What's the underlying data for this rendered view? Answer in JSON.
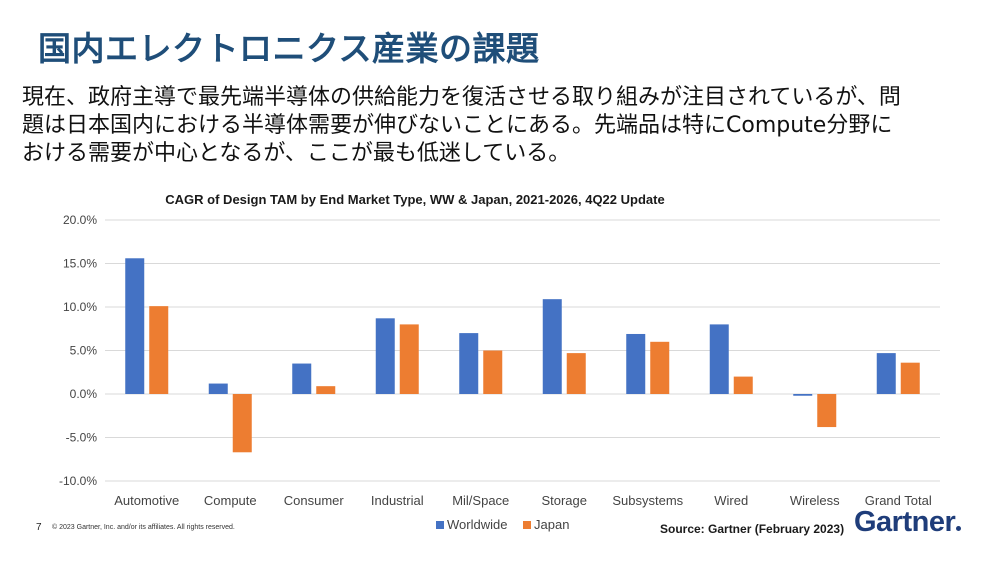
{
  "slide": {
    "title": "国内エレクトロニクス産業の課題",
    "body_lines": [
      "現在、政府主導で最先端半導体の供給能力を復活させる取り組みが注目されているが、問",
      "題は日本国内における半導体需要が伸びないことにある。先端品は特にCompute分野に",
      "おける需要が中心となるが、ここが最も低迷している。"
    ],
    "page_number": "7",
    "copyright": "© 2023 Gartner, Inc. and/or its affiliates. All rights reserved.",
    "source": "Source: Gartner (February 2023)",
    "logo": "Gartner"
  },
  "colors": {
    "title": "#1f4e79",
    "worldwide": "#4472c4",
    "japan": "#ed7d31",
    "gridline": "#d9d9d9",
    "logo": "#1f3d7a"
  },
  "chart_data": {
    "type": "bar",
    "title": "CAGR of Design TAM by End Market Type, WW & Japan, 2021-2026, 4Q22 Update",
    "xlabel": "",
    "ylabel": "",
    "categories": [
      "Automotive",
      "Compute",
      "Consumer",
      "Industrial",
      "Mil/Space",
      "Storage",
      "Subsystems",
      "Wired",
      "Wireless",
      "Grand Total"
    ],
    "series": [
      {
        "name": "Worldwide",
        "values": [
          15.6,
          1.2,
          3.5,
          8.7,
          7.0,
          10.9,
          6.9,
          8.0,
          -0.2,
          4.7
        ]
      },
      {
        "name": "Japan",
        "values": [
          10.1,
          -6.7,
          0.9,
          8.0,
          5.0,
          4.7,
          6.0,
          2.0,
          -3.8,
          3.6
        ]
      }
    ],
    "ylim": [
      -10,
      20
    ],
    "yticks": [
      -10,
      -5,
      0,
      5,
      10,
      15,
      20
    ],
    "ytick_labels": [
      "-10.0%",
      "-5.0%",
      "0.0%",
      "5.0%",
      "10.0%",
      "15.0%",
      "20.0%"
    ],
    "grid": true,
    "legend_position": "bottom-center"
  }
}
